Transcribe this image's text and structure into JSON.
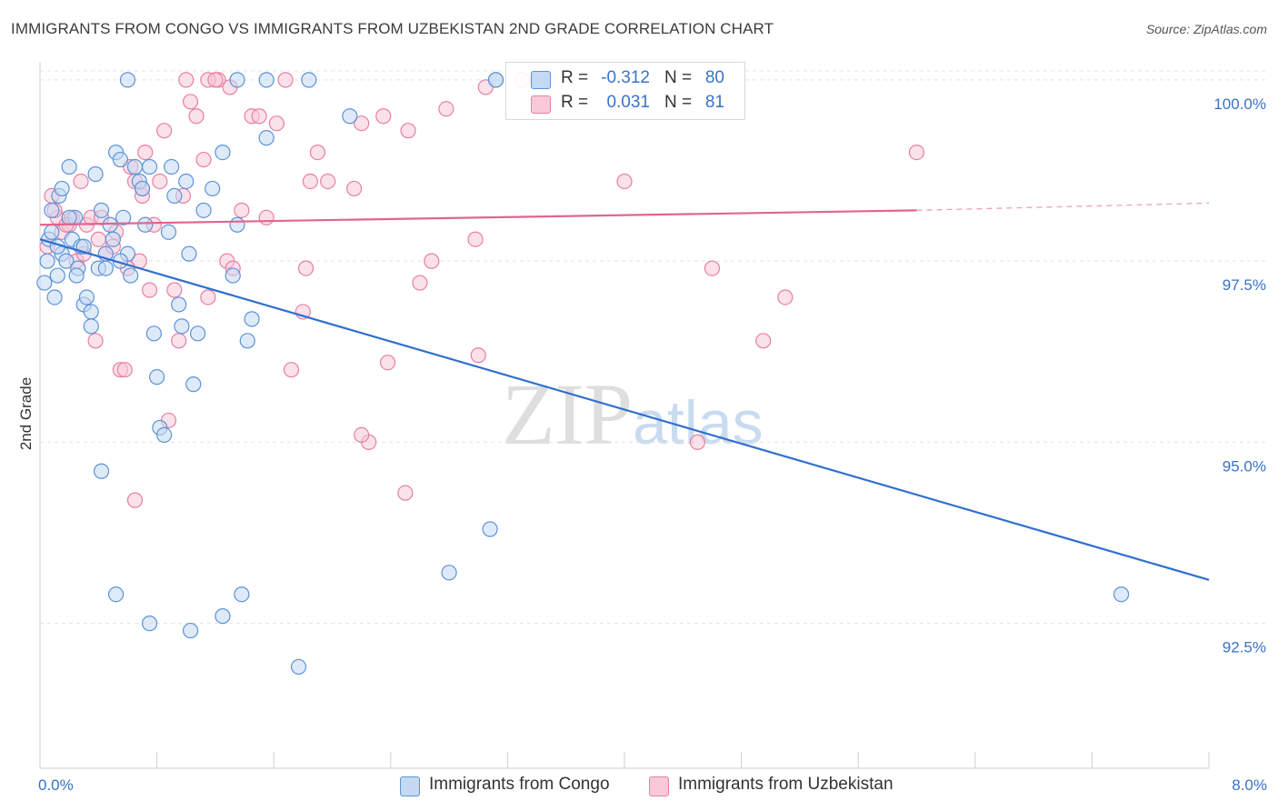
{
  "title": "IMMIGRANTS FROM CONGO VS IMMIGRANTS FROM UZBEKISTAN 2ND GRADE CORRELATION CHART",
  "source": "Source: ZipAtlas.com",
  "watermark": {
    "zip": "ZIP",
    "atlas": "atlas"
  },
  "colors": {
    "congo": "#5b93d8",
    "congo_fill": "#c5d9f3",
    "uzbek": "#e87fa3",
    "uzbek_fill": "#f8c9d8",
    "accent": "#3a72c8"
  },
  "legend": {
    "congo": {
      "r_label": "R =",
      "r_value": "-0.312",
      "n_label": "N =",
      "n_value": "80"
    },
    "uzbek": {
      "r_label": "R =",
      "r_value": "0.031",
      "n_label": "N =",
      "n_value": "81"
    }
  },
  "chart_data": {
    "type": "scatter",
    "title": "IMMIGRANTS FROM CONGO VS IMMIGRANTS FROM UZBEKISTAN 2ND GRADE CORRELATION CHART",
    "xlabel": "",
    "ylabel": "2nd Grade",
    "xlim": [
      0,
      8
    ],
    "ylim": [
      90.5,
      100.35
    ],
    "x_tick_labels": [
      "0.0%",
      "8.0%"
    ],
    "y_ticks": [
      92.5,
      95.0,
      97.5,
      100.0
    ],
    "y_tick_labels": [
      "92.5%",
      "95.0%",
      "97.5%",
      "100.0%"
    ],
    "legend_position": "top-center",
    "series": [
      {
        "name": "Immigrants from Congo",
        "trend": {
          "x0": 0.0,
          "y0": 97.8,
          "x1": 8.0,
          "y1": 93.1
        },
        "points": [
          [
            0.03,
            97.2
          ],
          [
            0.05,
            97.5
          ],
          [
            0.06,
            97.8
          ],
          [
            0.08,
            98.2
          ],
          [
            0.1,
            97.0
          ],
          [
            0.12,
            97.3
          ],
          [
            0.13,
            98.4
          ],
          [
            0.15,
            97.6
          ],
          [
            0.18,
            97.5
          ],
          [
            0.2,
            98.8
          ],
          [
            0.22,
            97.8
          ],
          [
            0.24,
            98.1
          ],
          [
            0.26,
            97.4
          ],
          [
            0.28,
            97.7
          ],
          [
            0.3,
            96.9
          ],
          [
            0.32,
            97.0
          ],
          [
            0.35,
            96.6
          ],
          [
            0.38,
            98.7
          ],
          [
            0.4,
            97.4
          ],
          [
            0.42,
            98.2
          ],
          [
            0.45,
            97.4
          ],
          [
            0.48,
            98.0
          ],
          [
            0.5,
            97.8
          ],
          [
            0.52,
            99.0
          ],
          [
            0.55,
            98.9
          ],
          [
            0.57,
            98.1
          ],
          [
            0.6,
            97.6
          ],
          [
            0.62,
            97.3
          ],
          [
            0.65,
            98.8
          ],
          [
            0.68,
            98.6
          ],
          [
            0.7,
            98.5
          ],
          [
            0.72,
            98.0
          ],
          [
            0.75,
            98.8
          ],
          [
            0.78,
            96.5
          ],
          [
            0.8,
            95.9
          ],
          [
            0.82,
            95.2
          ],
          [
            0.85,
            95.1
          ],
          [
            0.88,
            97.9
          ],
          [
            0.9,
            98.8
          ],
          [
            0.92,
            98.4
          ],
          [
            0.95,
            96.9
          ],
          [
            0.97,
            96.6
          ],
          [
            1.0,
            98.6
          ],
          [
            1.02,
            97.6
          ],
          [
            1.05,
            95.8
          ],
          [
            1.08,
            96.5
          ],
          [
            1.12,
            98.2
          ],
          [
            1.18,
            98.5
          ],
          [
            1.25,
            99.0
          ],
          [
            1.32,
            97.3
          ],
          [
            1.35,
            98.0
          ],
          [
            1.42,
            96.4
          ],
          [
            1.45,
            96.7
          ],
          [
            1.55,
            99.2
          ],
          [
            0.6,
            100.0
          ],
          [
            1.35,
            100.0
          ],
          [
            1.55,
            100.0
          ],
          [
            1.84,
            100.0
          ],
          [
            2.12,
            99.5
          ],
          [
            3.12,
            100.0
          ],
          [
            3.12,
            100.0
          ],
          [
            0.15,
            98.5
          ],
          [
            0.3,
            97.7
          ],
          [
            0.35,
            96.8
          ],
          [
            0.42,
            94.6
          ],
          [
            0.52,
            92.9
          ],
          [
            0.75,
            92.5
          ],
          [
            1.03,
            92.4
          ],
          [
            1.38,
            92.9
          ],
          [
            1.25,
            92.6
          ],
          [
            1.77,
            91.9
          ],
          [
            2.8,
            93.2
          ],
          [
            3.08,
            93.8
          ],
          [
            7.4,
            92.9
          ],
          [
            0.45,
            97.6
          ],
          [
            0.2,
            98.1
          ],
          [
            0.55,
            97.5
          ],
          [
            0.12,
            97.7
          ],
          [
            0.08,
            97.9
          ],
          [
            0.25,
            97.3
          ]
        ]
      },
      {
        "name": "Immigrants from Uzbekistan",
        "trend": {
          "x0": 0.0,
          "y0": 98.0,
          "x1": 6.0,
          "y1": 98.2,
          "x_dash_end": 8.0,
          "y_dash_end": 98.3
        },
        "points": [
          [
            0.05,
            97.7
          ],
          [
            0.08,
            98.4
          ],
          [
            0.12,
            98.1
          ],
          [
            0.15,
            97.9
          ],
          [
            0.2,
            98.0
          ],
          [
            0.25,
            97.5
          ],
          [
            0.28,
            98.6
          ],
          [
            0.32,
            98.0
          ],
          [
            0.35,
            98.1
          ],
          [
            0.38,
            96.4
          ],
          [
            0.42,
            98.1
          ],
          [
            0.45,
            97.6
          ],
          [
            0.5,
            97.7
          ],
          [
            0.52,
            97.9
          ],
          [
            0.55,
            96.0
          ],
          [
            0.58,
            96.0
          ],
          [
            0.62,
            98.8
          ],
          [
            0.65,
            98.6
          ],
          [
            0.68,
            97.5
          ],
          [
            0.7,
            98.4
          ],
          [
            0.72,
            99.0
          ],
          [
            0.75,
            97.1
          ],
          [
            0.78,
            98.0
          ],
          [
            0.82,
            98.6
          ],
          [
            0.85,
            99.3
          ],
          [
            0.88,
            95.3
          ],
          [
            0.92,
            97.1
          ],
          [
            0.95,
            96.4
          ],
          [
            0.98,
            98.4
          ],
          [
            1.03,
            99.7
          ],
          [
            1.07,
            99.5
          ],
          [
            1.12,
            98.9
          ],
          [
            1.15,
            97.0
          ],
          [
            1.22,
            100.0
          ],
          [
            1.28,
            97.5
          ],
          [
            1.32,
            97.4
          ],
          [
            1.38,
            98.2
          ],
          [
            1.45,
            99.5
          ],
          [
            1.5,
            99.5
          ],
          [
            1.55,
            98.1
          ],
          [
            1.62,
            99.4
          ],
          [
            1.68,
            100.0
          ],
          [
            1.72,
            96.0
          ],
          [
            1.8,
            96.8
          ],
          [
            1.82,
            97.4
          ],
          [
            1.85,
            98.6
          ],
          [
            1.9,
            99.0
          ],
          [
            1.97,
            98.6
          ],
          [
            2.15,
            98.5
          ],
          [
            2.2,
            99.4
          ],
          [
            2.25,
            95.0
          ],
          [
            2.35,
            99.5
          ],
          [
            2.38,
            96.1
          ],
          [
            2.5,
            94.3
          ],
          [
            2.52,
            99.3
          ],
          [
            2.6,
            97.2
          ],
          [
            2.68,
            97.5
          ],
          [
            2.78,
            99.6
          ],
          [
            2.98,
            97.8
          ],
          [
            3.0,
            96.2
          ],
          [
            3.05,
            99.9
          ],
          [
            3.3,
            100.0
          ],
          [
            4.0,
            98.6
          ],
          [
            4.5,
            95.0
          ],
          [
            4.6,
            97.4
          ],
          [
            4.95,
            96.4
          ],
          [
            5.1,
            97.0
          ],
          [
            6.0,
            99.0
          ],
          [
            0.1,
            98.2
          ],
          [
            0.18,
            98.0
          ],
          [
            0.4,
            97.8
          ],
          [
            0.6,
            97.4
          ],
          [
            0.7,
            98.5
          ],
          [
            1.3,
            99.9
          ],
          [
            1.0,
            100.0
          ],
          [
            1.15,
            100.0
          ],
          [
            0.65,
            94.2
          ],
          [
            2.2,
            95.1
          ],
          [
            0.3,
            97.6
          ],
          [
            0.22,
            98.1
          ],
          [
            1.2,
            100.0
          ]
        ]
      }
    ]
  }
}
